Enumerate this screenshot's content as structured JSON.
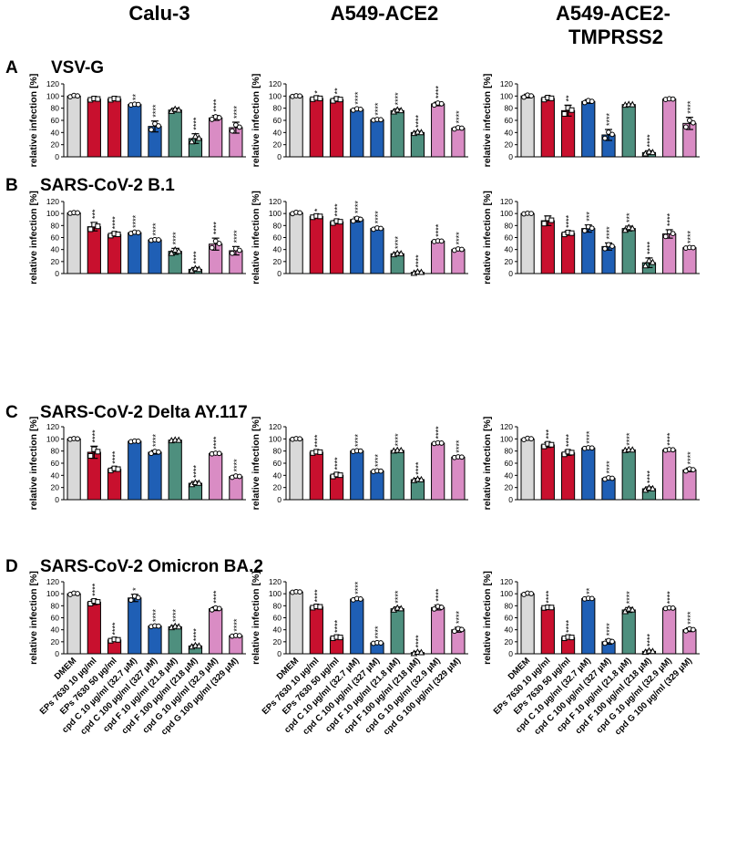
{
  "figure": {
    "columns": [
      "Calu-3",
      "A549-ACE2",
      "A549-ACE2-\nTMPRSS2"
    ],
    "rows": [
      {
        "letter": "A",
        "title": "VSV-G"
      },
      {
        "letter": "B",
        "title": "SARS-CoV-2 B.1"
      },
      {
        "letter": "C",
        "title": "SARS-CoV-2 Delta AY.117"
      },
      {
        "letter": "D",
        "title": "SARS-CoV-2 Omicron BA.2"
      }
    ]
  },
  "colors": {
    "DMEM": "#d9d9d9",
    "EPs": "#c8102e",
    "cpdC": "#1f5fb5",
    "cpdF": "#4e8f7e",
    "cpdG": "#d98cc4"
  },
  "chart_data": {
    "type": "bar",
    "ylabel": "relative infection [%]",
    "ylim": [
      0,
      120
    ],
    "yticks": [
      0,
      20,
      40,
      60,
      80,
      100,
      120
    ],
    "categories": [
      "DMEM",
      "EPs 7630 10 µg/ml",
      "EPs 7630 50 µg/ml",
      "cpd C 10 µg/ml (32.7 µM)",
      "cpd C 100 µg/ml (327 µM)",
      "cpd F 10 µg/ml (21.8 µM)",
      "cpd F 100 µg/ml (218 µM)",
      "cpd G 10 µg/ml (32.9 µM)",
      "cpd G 100 µg/ml (329 µM)"
    ],
    "color_groups": [
      "DMEM",
      "EPs",
      "EPs",
      "cpdC",
      "cpdC",
      "cpdF",
      "cpdF",
      "cpdG",
      "cpdG"
    ],
    "markers": [
      "circle",
      "square",
      "square",
      "circle",
      "circle",
      "triangle",
      "triangle",
      "circle",
      "circle"
    ],
    "panels": [
      {
        "row": 0,
        "col": 0,
        "values": [
          100,
          95,
          95,
          86,
          50,
          77,
          30,
          64,
          48
        ],
        "errors": [
          2,
          2,
          2,
          1,
          9,
          3,
          8,
          4,
          9
        ],
        "significance": [
          "",
          "",
          "",
          "**",
          "****",
          "",
          "****",
          "****",
          "****"
        ]
      },
      {
        "row": 0,
        "col": 1,
        "values": [
          100,
          96,
          94,
          78,
          61,
          76,
          40,
          87,
          47
        ],
        "errors": [
          1,
          2,
          3,
          2,
          1,
          3,
          2,
          3,
          2
        ],
        "significance": [
          "",
          "*",
          "**",
          "****",
          "****",
          "****",
          "****",
          "****",
          "****"
        ]
      },
      {
        "row": 0,
        "col": 2,
        "values": [
          100,
          96,
          76,
          91,
          36,
          86,
          7,
          95,
          55
        ],
        "errors": [
          3,
          3,
          9,
          3,
          9,
          1,
          3,
          1,
          10
        ],
        "significance": [
          "",
          "",
          "**",
          "",
          "****",
          "",
          "****",
          "",
          "****"
        ]
      },
      {
        "row": 1,
        "col": 0,
        "values": [
          101,
          78,
          65,
          68,
          56,
          37,
          7,
          49,
          38
        ],
        "errors": [
          1,
          7,
          3,
          2,
          1,
          5,
          3,
          10,
          7
        ],
        "significance": [
          "",
          "***",
          "****",
          "****",
          "****",
          "****",
          "****",
          "****",
          "****"
        ]
      },
      {
        "row": 1,
        "col": 1,
        "values": [
          101,
          95,
          86,
          90,
          75,
          33,
          2,
          54,
          40
        ],
        "errors": [
          2,
          2,
          3,
          4,
          2,
          2,
          2,
          1,
          2
        ],
        "significance": [
          "",
          "*",
          "****",
          "****",
          "****",
          "****",
          "****",
          "****",
          "****"
        ]
      },
      {
        "row": 1,
        "col": 2,
        "values": [
          100,
          88,
          67,
          75,
          45,
          75,
          18,
          66,
          43
        ],
        "errors": [
          1,
          8,
          3,
          6,
          6,
          4,
          8,
          7,
          1
        ],
        "significance": [
          "",
          "",
          "****",
          "***",
          "****",
          "***",
          "****",
          "****",
          "****"
        ]
      },
      {
        "row": 2,
        "col": 0,
        "values": [
          100,
          78,
          50,
          96,
          78,
          98,
          27,
          76,
          38
        ],
        "errors": [
          1,
          10,
          3,
          1,
          3,
          1,
          3,
          1,
          2
        ],
        "significance": [
          "",
          "****",
          "****",
          "",
          "****",
          "",
          "****",
          "****",
          "****"
        ]
      },
      {
        "row": 2,
        "col": 1,
        "values": [
          100,
          78,
          40,
          80,
          47,
          81,
          33,
          93,
          70
        ],
        "errors": [
          1,
          2,
          3,
          1,
          1,
          1,
          2,
          1,
          1
        ],
        "significance": [
          "",
          "****",
          "****",
          "****",
          "****",
          "****",
          "****",
          "****",
          "****"
        ]
      },
      {
        "row": 2,
        "col": 2,
        "values": [
          100,
          90,
          77,
          85,
          35,
          82,
          18,
          82,
          49
        ],
        "errors": [
          2,
          4,
          4,
          1,
          2,
          1,
          3,
          1,
          3
        ],
        "significance": [
          "",
          "***",
          "****",
          "****",
          "****",
          "****",
          "****",
          "****",
          "****"
        ]
      },
      {
        "row": 3,
        "col": 0,
        "values": [
          100,
          86,
          23,
          93,
          46,
          45,
          13,
          75,
          30
        ],
        "errors": [
          2,
          4,
          2,
          6,
          1,
          2,
          2,
          3,
          1
        ],
        "significance": [
          "",
          "****",
          "****",
          "*",
          "****",
          "****",
          "****",
          "****",
          "****"
        ]
      },
      {
        "row": 3,
        "col": 1,
        "values": [
          103,
          78,
          27,
          91,
          18,
          75,
          2,
          77,
          40
        ],
        "errors": [
          1,
          2,
          2,
          2,
          1,
          3,
          2,
          4,
          4
        ],
        "significance": [
          "",
          "****",
          "****",
          "****",
          "****",
          "****",
          "****",
          "****",
          "****"
        ]
      },
      {
        "row": 3,
        "col": 2,
        "values": [
          100,
          77,
          27,
          92,
          20,
          73,
          4,
          76,
          40
        ],
        "errors": [
          2,
          1,
          2,
          1,
          4,
          4,
          2,
          1,
          3
        ],
        "significance": [
          "",
          "****",
          "****",
          "**",
          "****",
          "****",
          "****",
          "****",
          "****"
        ]
      }
    ]
  }
}
